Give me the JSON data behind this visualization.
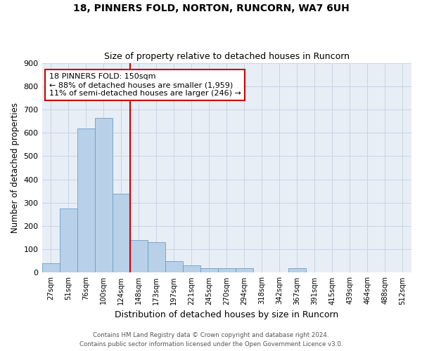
{
  "title1": "18, PINNERS FOLD, NORTON, RUNCORN, WA7 6UH",
  "title2": "Size of property relative to detached houses in Runcorn",
  "xlabel": "Distribution of detached houses by size in Runcorn",
  "ylabel": "Number of detached properties",
  "categories": [
    "27sqm",
    "51sqm",
    "76sqm",
    "100sqm",
    "124sqm",
    "148sqm",
    "173sqm",
    "197sqm",
    "221sqm",
    "245sqm",
    "270sqm",
    "294sqm",
    "318sqm",
    "342sqm",
    "367sqm",
    "391sqm",
    "415sqm",
    "439sqm",
    "464sqm",
    "488sqm",
    "512sqm"
  ],
  "values": [
    40,
    275,
    620,
    665,
    340,
    140,
    130,
    50,
    30,
    20,
    20,
    20,
    0,
    0,
    20,
    0,
    0,
    0,
    0,
    0,
    0
  ],
  "bar_color": "#b8d0e8",
  "bar_edge_color": "#6a9fc8",
  "vline_index": 5,
  "vline_color": "#cc0000",
  "annotation_text": "18 PINNERS FOLD: 150sqm\n← 88% of detached houses are smaller (1,959)\n11% of semi-detached houses are larger (246) →",
  "annotation_box_color": "#ffffff",
  "annotation_box_edge": "#cc0000",
  "ylim": [
    0,
    900
  ],
  "yticks": [
    0,
    100,
    200,
    300,
    400,
    500,
    600,
    700,
    800,
    900
  ],
  "footer1": "Contains HM Land Registry data © Crown copyright and database right 2024.",
  "footer2": "Contains public sector information licensed under the Open Government Licence v3.0.",
  "grid_color": "#c8d4e4",
  "bg_color": "#e8eef6"
}
